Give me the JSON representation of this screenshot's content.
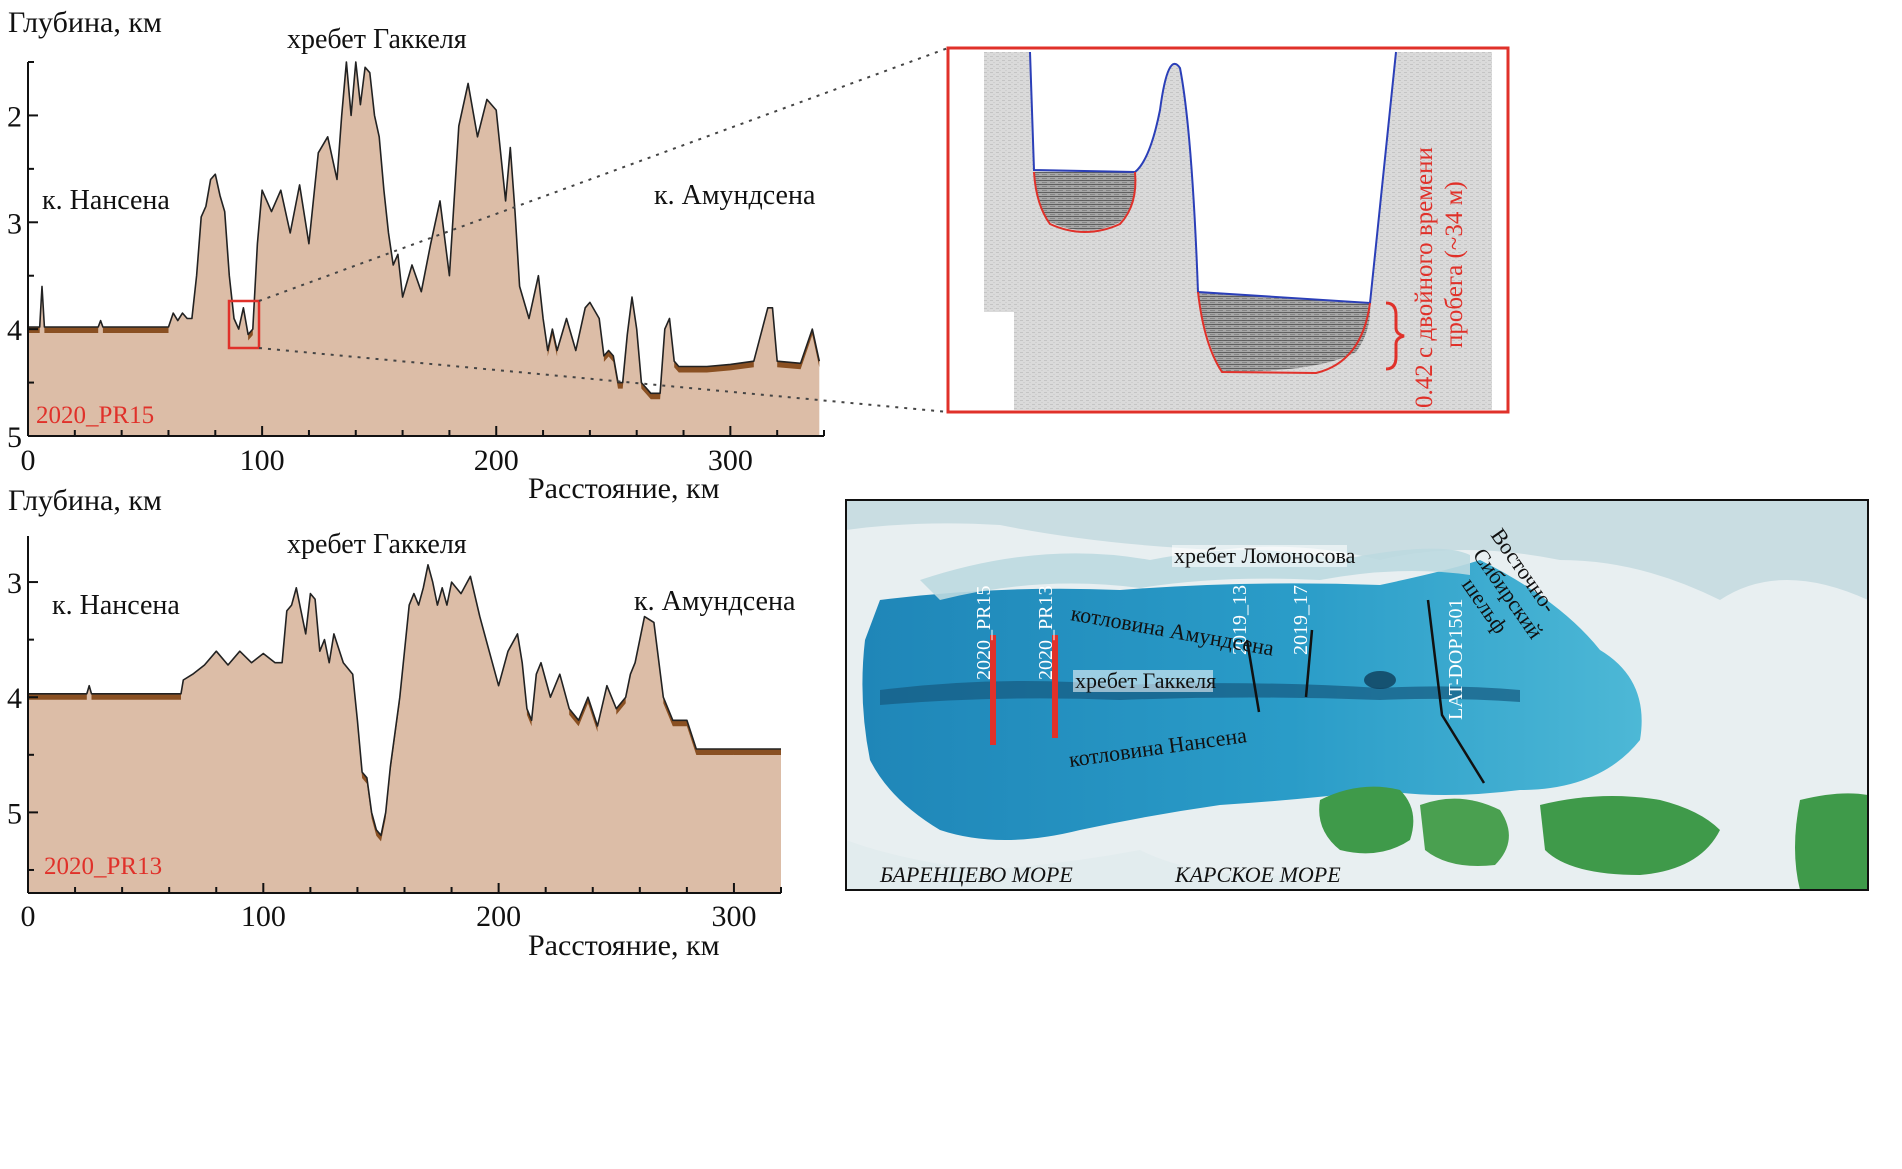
{
  "colors": {
    "seafloor_fill": "#dcbda7",
    "sediment": "#8a5022",
    "profile_line": "#222222",
    "accent_red": "#e0312a",
    "echo_blue": "#2b3fb8",
    "map_water": "#2a9cc8",
    "land_green": "#3f9a4a"
  },
  "chart_data": [
    {
      "type": "area",
      "label": "2020_PR15",
      "ylabel": "Глубина, км",
      "xlabel": "Расстояние, км",
      "annotations": [
        "хребет Гаккеля",
        "к. Нансена",
        "к. Амундсена"
      ],
      "xlim": [
        0,
        340
      ],
      "ylim": [
        5,
        1.5
      ],
      "y_inverted": true,
      "xticks": [
        0,
        100,
        200,
        300
      ],
      "yticks": [
        2,
        3,
        4,
        5
      ],
      "x": [
        0,
        5,
        6,
        7,
        30,
        31,
        32,
        60,
        62,
        64,
        66,
        68,
        70,
        72,
        74,
        76,
        78,
        80,
        82,
        84,
        86,
        88,
        90,
        92,
        94,
        96,
        98,
        100,
        104,
        108,
        112,
        116,
        120,
        124,
        128,
        132,
        134,
        136,
        138,
        140,
        142,
        144,
        146,
        148,
        150,
        152,
        154,
        156,
        158,
        160,
        164,
        168,
        172,
        176,
        180,
        184,
        188,
        192,
        196,
        200,
        204,
        206,
        208,
        210,
        214,
        218,
        220,
        222,
        224,
        226,
        230,
        234,
        238,
        240,
        244,
        246,
        248,
        250,
        252,
        254,
        256,
        258,
        260,
        262,
        264,
        266,
        268,
        270,
        272,
        274,
        276,
        278,
        280,
        284,
        290,
        300,
        310,
        316,
        318,
        320,
        330,
        335,
        338
      ],
      "depth_km": [
        3.98,
        3.98,
        3.6,
        3.98,
        3.98,
        3.92,
        3.98,
        3.98,
        3.85,
        3.92,
        3.85,
        3.9,
        3.9,
        3.5,
        2.95,
        2.85,
        2.6,
        2.55,
        2.75,
        2.9,
        3.5,
        3.9,
        4.0,
        3.8,
        4.05,
        4.0,
        3.2,
        2.7,
        2.9,
        2.7,
        3.1,
        2.65,
        3.2,
        2.35,
        2.2,
        2.6,
        2.0,
        1.5,
        2.0,
        1.5,
        1.9,
        1.55,
        1.6,
        2.0,
        2.2,
        2.7,
        3.1,
        3.4,
        3.3,
        3.7,
        3.4,
        3.65,
        3.2,
        2.8,
        3.5,
        2.1,
        1.7,
        2.2,
        1.85,
        1.95,
        2.8,
        2.3,
        2.9,
        3.6,
        3.9,
        3.5,
        3.9,
        4.2,
        4.0,
        4.2,
        3.9,
        4.2,
        3.8,
        3.75,
        3.9,
        4.25,
        4.2,
        4.25,
        4.5,
        4.5,
        4.05,
        3.7,
        4.0,
        4.5,
        4.55,
        4.6,
        4.6,
        4.6,
        4.0,
        3.9,
        4.3,
        4.35,
        4.35,
        4.35,
        4.35,
        4.33,
        4.3,
        3.8,
        3.8,
        4.3,
        4.32,
        4.0,
        4.3
      ]
    },
    {
      "type": "area",
      "label": "2020_PR13",
      "ylabel": "Глубина, км",
      "xlabel": "Расстояние, км",
      "annotations": [
        "хребет Гаккеля",
        "к. Нансена",
        "к. Амундсена"
      ],
      "xlim": [
        0,
        320
      ],
      "ylim": [
        5.7,
        2.6
      ],
      "y_inverted": true,
      "xticks": [
        0,
        100,
        200,
        300
      ],
      "yticks": [
        3,
        4,
        5
      ],
      "x": [
        0,
        25,
        26,
        27,
        65,
        66,
        70,
        75,
        80,
        85,
        90,
        95,
        100,
        105,
        108,
        110,
        112,
        114,
        116,
        118,
        120,
        122,
        124,
        126,
        128,
        130,
        134,
        138,
        140,
        142,
        144,
        146,
        148,
        150,
        152,
        154,
        156,
        158,
        160,
        162,
        164,
        166,
        168,
        170,
        172,
        174,
        176,
        178,
        180,
        184,
        188,
        192,
        196,
        200,
        204,
        208,
        210,
        212,
        214,
        216,
        218,
        220,
        222,
        226,
        230,
        234,
        238,
        242,
        246,
        250,
        254,
        256,
        258,
        262,
        266,
        270,
        274,
        278,
        280,
        284,
        300,
        320
      ],
      "depth_km": [
        3.97,
        3.97,
        3.9,
        3.97,
        3.97,
        3.85,
        3.8,
        3.72,
        3.6,
        3.72,
        3.6,
        3.7,
        3.62,
        3.7,
        3.7,
        3.25,
        3.2,
        3.05,
        3.25,
        3.45,
        3.1,
        3.15,
        3.6,
        3.5,
        3.7,
        3.45,
        3.7,
        3.8,
        4.2,
        4.65,
        4.7,
        5.0,
        5.15,
        5.2,
        5.0,
        4.6,
        4.3,
        4.0,
        3.6,
        3.2,
        3.1,
        3.2,
        3.05,
        2.85,
        3.0,
        3.2,
        3.05,
        3.2,
        3.0,
        3.1,
        2.95,
        3.3,
        3.6,
        3.9,
        3.6,
        3.45,
        3.7,
        4.1,
        4.2,
        3.8,
        3.7,
        3.85,
        4.0,
        3.8,
        4.1,
        4.2,
        4.0,
        4.25,
        3.9,
        4.1,
        4.0,
        3.8,
        3.7,
        3.3,
        3.35,
        4.0,
        4.2,
        4.2,
        4.2,
        4.45,
        4.45,
        4.45
      ]
    }
  ],
  "profile_pr15": {
    "ylabel": "Глубина, км",
    "xlabel": "Расстояние, км",
    "ridge": "хребет Гаккеля",
    "left_basin": "к. Нансена",
    "right_basin": "к. Амундсена",
    "tag": "2020_PR15",
    "xticks": [
      "0",
      "100",
      "200",
      "300"
    ],
    "yticks": [
      "2",
      "3",
      "4",
      "5"
    ]
  },
  "profile_pr13": {
    "ylabel": "Глубина, км",
    "xlabel": "Расстояние, км",
    "ridge": "хребет Гаккеля",
    "left_basin": "к. Нансена",
    "right_basin": "к. Амундсена",
    "tag": "2020_PR13",
    "xticks": [
      "0",
      "100",
      "200",
      "300"
    ],
    "yticks": [
      "3",
      "4",
      "5"
    ]
  },
  "inset": {
    "annotation_line1": "0.42 с двойного времени",
    "annotation_line2": "пробега (~34 м)"
  },
  "map": {
    "labels": {
      "lomonosov": "хребет Ломоносова",
      "amundsen": "котловина Амундсена",
      "gakkel": "хребет Гаккеля",
      "nansen": "котловина Нансена",
      "barents": "БАРЕНЦЕВО МОРЕ",
      "kara": "КАРСКОЕ МОРЕ",
      "shelf_1": "Восточно-",
      "shelf_2": "Сибирский",
      "shelf_3": "шельф"
    },
    "lines": {
      "pr15": "2020_PR15",
      "pr13": "2020_PR13",
      "l2019_13": "2019_13",
      "l2019_17": "2019_17",
      "lat": "LAT-DOP1501"
    }
  }
}
